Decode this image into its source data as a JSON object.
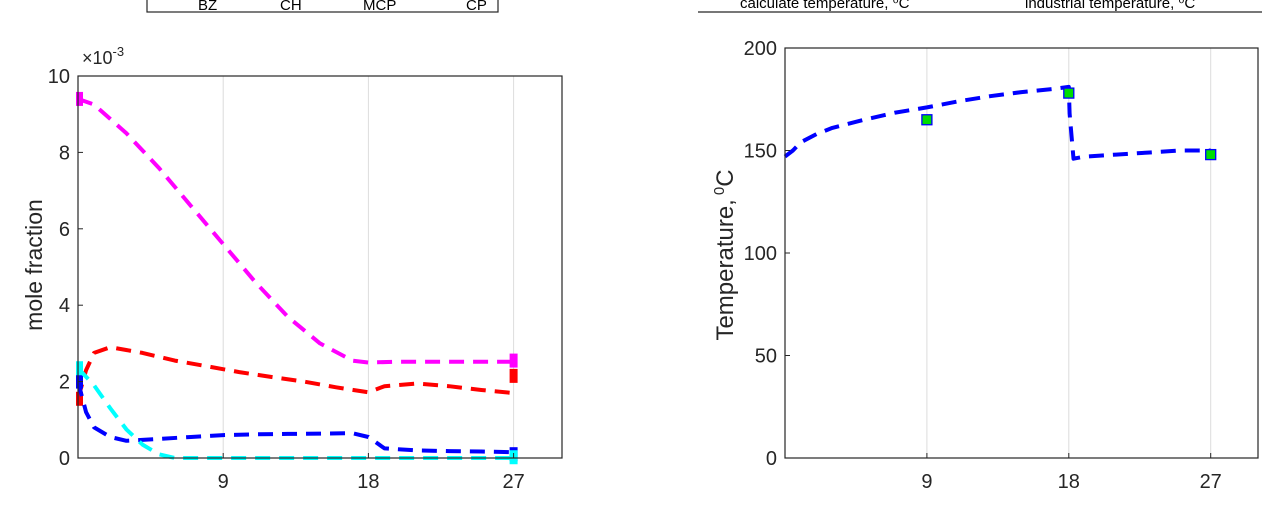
{
  "colors": {
    "magenta": "#ff00ff",
    "red": "#ff0000",
    "blue": "#0000ff",
    "cyan": "#00ffff",
    "marker_fill": "#00dd00",
    "axis": "#262626",
    "grid": "#dcdcdc"
  },
  "chart_data": [
    {
      "type": "line",
      "xlabel": "",
      "ylabel": "mole fraction",
      "y_multiplier": "×10",
      "y_multiplier_exp": "-3",
      "xlim": [
        0,
        30
      ],
      "ylim": [
        0,
        10
      ],
      "xticks": [
        9,
        18,
        27
      ],
      "yticks": [
        0,
        2,
        4,
        6,
        8,
        10
      ],
      "grid": "vertical",
      "legend_partial": [
        "BZ",
        "CH",
        "MCP",
        "CP"
      ],
      "series": [
        {
          "color": "magenta",
          "x": [
            0,
            1,
            3,
            5,
            7,
            9,
            11,
            13,
            15,
            17,
            18,
            20,
            22,
            24,
            26,
            27
          ],
          "y": [
            9.4,
            9.25,
            8.5,
            7.6,
            6.6,
            5.6,
            4.6,
            3.7,
            3.0,
            2.55,
            2.5,
            2.52,
            2.52,
            2.52,
            2.52,
            2.52
          ],
          "end_marker": 2.55
        },
        {
          "color": "red",
          "x": [
            0,
            0.5,
            1,
            2,
            4,
            6,
            8,
            10,
            12,
            14,
            16,
            18,
            19,
            21,
            23,
            25,
            27
          ],
          "y": [
            1.55,
            2.3,
            2.75,
            2.9,
            2.75,
            2.55,
            2.4,
            2.25,
            2.12,
            2.0,
            1.85,
            1.72,
            1.88,
            1.95,
            1.88,
            1.78,
            1.7
          ],
          "end_marker": 2.15
        },
        {
          "color": "blue",
          "x": [
            0,
            0.5,
            1,
            2,
            3,
            5,
            7,
            9,
            11,
            13,
            15,
            17,
            18,
            19,
            21,
            23,
            25,
            27
          ],
          "y": [
            2.0,
            1.2,
            0.8,
            0.55,
            0.45,
            0.5,
            0.55,
            0.6,
            0.62,
            0.63,
            0.64,
            0.65,
            0.55,
            0.25,
            0.2,
            0.18,
            0.17,
            0.15
          ],
          "end_marker": 0.1
        },
        {
          "color": "cyan",
          "x": [
            0,
            1,
            2,
            3,
            4,
            5,
            6,
            9,
            12,
            15,
            18,
            21,
            24,
            27
          ],
          "y": [
            2.35,
            1.9,
            1.3,
            0.75,
            0.35,
            0.1,
            0.0,
            0.0,
            0.0,
            0.0,
            0.0,
            0.0,
            0.0,
            0.0
          ],
          "end_marker": 0.02
        }
      ]
    },
    {
      "type": "line",
      "xlabel": "",
      "ylabel": "Temperature,",
      "ylabel_sup": "0",
      "ylabel_unit": "C",
      "xlim": [
        0,
        30
      ],
      "ylim": [
        0,
        200
      ],
      "xticks": [
        9,
        18,
        27
      ],
      "yticks": [
        0,
        50,
        100,
        150,
        200
      ],
      "grid": "vertical",
      "legend_partial": [
        "calculate temperature, ⁰C",
        "industrial temperature, ⁰C"
      ],
      "series": [
        {
          "color": "blue",
          "x": [
            0,
            0.5,
            1,
            2,
            3,
            5,
            7,
            9,
            11,
            13,
            15,
            17,
            18,
            18.05,
            18.3,
            19,
            21,
            23,
            25,
            27
          ],
          "y": [
            147,
            150,
            154,
            158,
            161,
            165,
            168.5,
            171,
            174,
            176.5,
            178.5,
            180,
            181,
            168,
            146,
            147,
            148,
            149,
            150,
            150
          ]
        },
        {
          "color": "marker_fill",
          "marker": "square",
          "x": [
            9,
            18,
            27
          ],
          "y": [
            165,
            178,
            148
          ]
        }
      ]
    }
  ]
}
